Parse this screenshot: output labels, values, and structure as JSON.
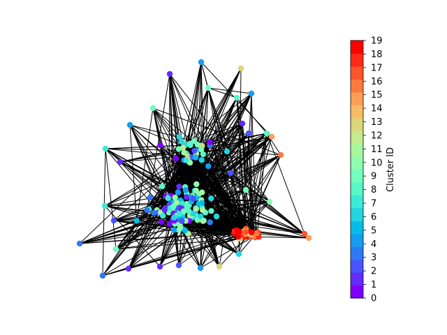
{
  "colorbar": {
    "label": "Cluster ID",
    "min": 0,
    "max": 19,
    "ticks": [
      "0",
      "1",
      "2",
      "3",
      "4",
      "5",
      "6",
      "7",
      "8",
      "9",
      "10",
      "11",
      "12",
      "13",
      "14",
      "15",
      "16",
      "17",
      "18",
      "19"
    ],
    "colormap": "rainbow"
  },
  "graph": {
    "node_color": "cluster",
    "edge_color": "#000000",
    "node_count_approx": 220
  }
}
